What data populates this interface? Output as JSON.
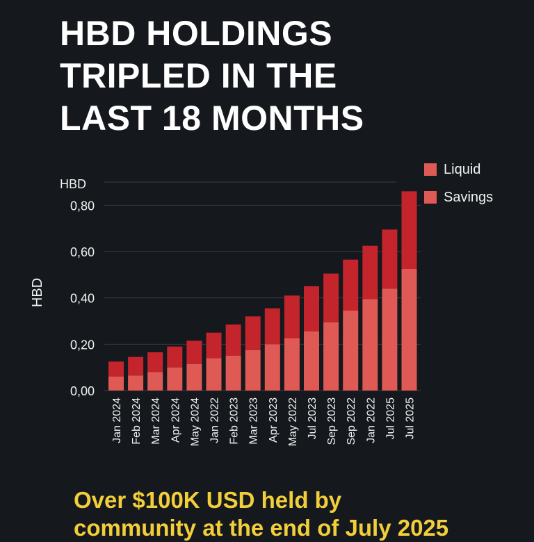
{
  "title": {
    "line1": "HBD HOLDINGS",
    "line2": "TRIPLED IN THE",
    "line3": "LAST 18 MONTHS"
  },
  "legend": {
    "liquid": "Liquid",
    "savings": "Savings"
  },
  "footer": {
    "line1": "Over  $100K USD held by",
    "line2": "community at the end of July 2025"
  },
  "colors": {
    "background": "#15181c",
    "liquid": "#c4242c",
    "savings": "#e05a55",
    "footer": "#f2cf3a",
    "grid": "#3a3d42"
  },
  "chart_data": {
    "type": "bar",
    "stacked": true,
    "ylabel": "HBD",
    "unit_label": "HBD",
    "ylim": [
      0,
      0.9
    ],
    "yticks": [
      {
        "value": 0.0,
        "label": "0,00"
      },
      {
        "value": 0.2,
        "label": "0,20"
      },
      {
        "value": 0.4,
        "label": "0,40"
      },
      {
        "value": 0.6,
        "label": "0,60"
      },
      {
        "value": 0.8,
        "label": "0,80"
      }
    ],
    "categories": [
      "Jan 2024",
      "Feb 2024",
      "Mar 2024",
      "Apr 2024",
      "May 2024",
      "Jan 2022",
      "Feb 2023",
      "Mar 2023",
      "Apr 2023",
      "May 2022",
      "Jul 2023",
      "Sep 2023",
      "Sep 2022",
      "Jan 2022",
      "Jul 2025",
      "Jul 2025"
    ],
    "series": [
      {
        "name": "Savings",
        "values": [
          0.06,
          0.065,
          0.08,
          0.1,
          0.115,
          0.14,
          0.15,
          0.175,
          0.2,
          0.225,
          0.255,
          0.295,
          0.345,
          0.395,
          0.44,
          0.525
        ]
      },
      {
        "name": "Liquid",
        "values": [
          0.065,
          0.08,
          0.085,
          0.09,
          0.1,
          0.11,
          0.135,
          0.145,
          0.155,
          0.185,
          0.195,
          0.21,
          0.22,
          0.23,
          0.255,
          0.335
        ]
      }
    ]
  }
}
